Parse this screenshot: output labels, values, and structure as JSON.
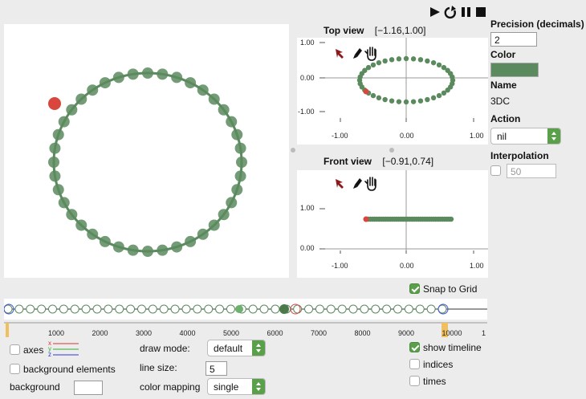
{
  "playback": {
    "play_icon": "play-icon",
    "loop_icon": "loop-icon",
    "pause_icon": "pause-icon",
    "stop_icon": "stop-icon"
  },
  "top_view": {
    "title": "Top view",
    "range": "[−1.16,1.00]",
    "y_ticks": [
      "1.00",
      "0.00",
      "-1.00"
    ],
    "x_ticks": [
      "-1.00",
      "0.00",
      "1.00"
    ]
  },
  "front_view": {
    "title": "Front view",
    "range": "[−0.91,0.74]",
    "y_ticks": [
      "1.00",
      "0.00"
    ],
    "x_ticks": [
      "-1.00",
      "0.00",
      "1.00"
    ]
  },
  "properties": {
    "precision_label": "Precision (decimals)",
    "precision_value": "2",
    "color_label": "Color",
    "color_value": "#5b8a5e",
    "name_label": "Name",
    "name_value": "3DC",
    "action_label": "Action",
    "action_value": "nil",
    "interpolation_label": "Interpolation",
    "interpolation_value": "50"
  },
  "snap_to_grid": {
    "label": "Snap to Grid",
    "checked": true
  },
  "timeline": {
    "ticks": [
      "1000",
      "2000",
      "3000",
      "4000",
      "5000",
      "6000",
      "7000",
      "8000",
      "9000",
      "10000",
      "1"
    ]
  },
  "bottom": {
    "axes_label": "axes",
    "axes_legend": [
      "x",
      "y",
      "z"
    ],
    "background_elements_label": "background elements",
    "background_label": "background",
    "draw_mode_label": "draw mode:",
    "draw_mode_value": "default",
    "line_size_label": "line size:",
    "line_size_value": "5",
    "color_mapping_label": "color mapping",
    "color_mapping_value": "single",
    "show_timeline_label": "show timeline",
    "indices_label": "indices",
    "times_label": "times"
  },
  "colors": {
    "accent": "#5a9f4a",
    "point": "#5b8a5e",
    "selected": "#d9463d"
  }
}
